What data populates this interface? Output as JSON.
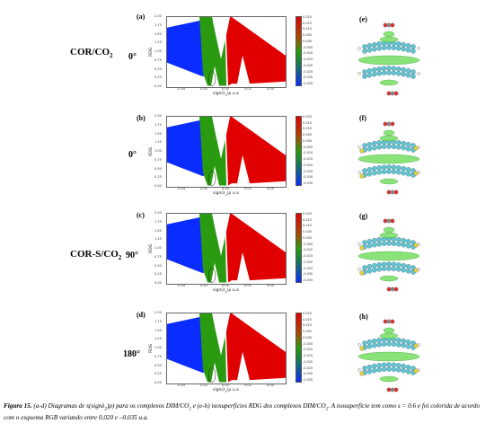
{
  "systems": [
    {
      "name": "COR/CO",
      "sub": "2"
    },
    {
      "name": "COR-S/CO",
      "sub": "2"
    }
  ],
  "rows": [
    {
      "letter": "(a)",
      "angle": "0°",
      "iso_letter": "(e)"
    },
    {
      "letter": "(b)",
      "angle": "0°",
      "iso_letter": "(f)"
    },
    {
      "letter": "(c)",
      "angle": "90°",
      "iso_letter": "(g)"
    },
    {
      "letter": "(d)",
      "angle": "180°",
      "iso_letter": "(h)"
    }
  ],
  "axes": {
    "ylabel": "RDG",
    "xlabel": "sign(λ",
    "xlabel_sub": "2",
    "xlabel_end": ")ρ  u.a",
    "xticks": [
      "-0.04",
      "-0.02",
      "0.00",
      "0.02",
      "0.04"
    ],
    "yticks": [
      "2.00",
      "1.75",
      "1.50",
      "1.25",
      "1.00",
      "0.75",
      "0.50",
      "0.25",
      "0.00"
    ],
    "cbar_ticks": [
      "0.020",
      "0.015",
      "0.010",
      "0.005",
      "0.000",
      "-0.005",
      "-0.010",
      "-0.015",
      "-0.020",
      "-0.025",
      "-0.030",
      "-0.035"
    ]
  },
  "colors": {
    "attractive": "#0b2cff",
    "vdw": "#2a9a10",
    "repulsive": "#e00000",
    "isosurface": "#7ee06a",
    "carbon": "#5fc6d6",
    "hydrogen": "#eeeeee",
    "oxygen": "#e03030",
    "sulfur": "#e0d040"
  },
  "caption": {
    "label": "Figura 15.",
    "t1": " (a-d) Diagramas de s(signλ",
    "s1": "2",
    "t2": ")ρ) para os complexos DIM/CO",
    "s2": "2",
    "t3": " e (e-h) isosuperfícies RDG dos complexos DIM/CO",
    "s3": "2",
    "t4": ". A isosuperfície tem como s = 0.6 e foi colorida de acordo com o esquema RGB variando entre 0,020 e –0,035 u.a."
  }
}
